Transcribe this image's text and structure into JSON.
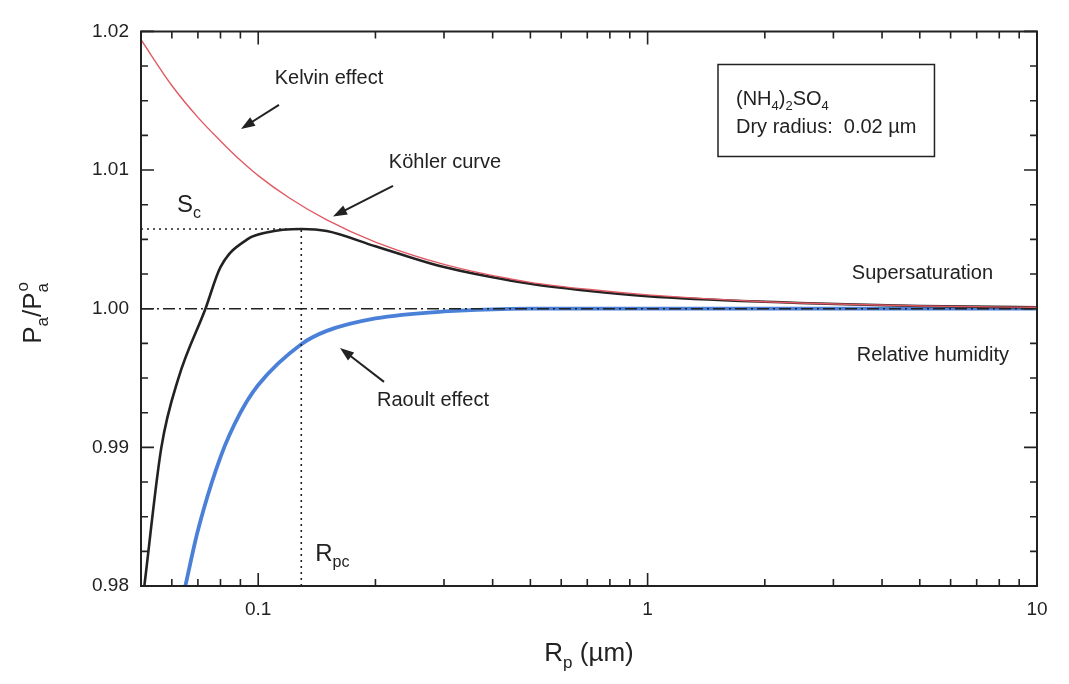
{
  "chart_data": {
    "type": "line",
    "xlabel": "R$_{p}$ (µm)",
    "ylabel": "P$_{a}$/P$_{a}$$^{o}$",
    "log": "x",
    "grid": false,
    "legend": false,
    "marker": "none",
    "line_style": "solid",
    "xlim": [
      0.05,
      10
    ],
    "xticks": [
      {
        "value": 0.05,
        "label": null
      },
      {
        "value": 0.06,
        "label": null
      },
      {
        "value": 0.07,
        "label": null
      },
      {
        "value": 0.08,
        "label": null
      },
      {
        "value": 0.09,
        "label": null
      },
      0.1,
      {
        "value": 0.2,
        "label": null
      },
      {
        "value": 0.3,
        "label": null
      },
      {
        "value": 0.4,
        "label": null
      },
      {
        "value": 0.5,
        "label": null
      },
      {
        "value": 0.6,
        "label": null
      },
      {
        "value": 0.7,
        "label": null
      },
      {
        "value": 0.8,
        "label": null
      },
      {
        "value": 0.9,
        "label": null
      },
      1,
      {
        "value": 2,
        "label": null
      },
      {
        "value": 3,
        "label": null
      },
      {
        "value": 4,
        "label": null
      },
      {
        "value": 5,
        "label": null
      },
      {
        "value": 6,
        "label": null
      },
      {
        "value": 7,
        "label": null
      },
      {
        "value": 8,
        "label": null
      },
      {
        "value": 9,
        "label": null
      },
      10
    ],
    "ylim": [
      0.98,
      1.02
    ],
    "yticks": [
      {
        "value": 0.98,
        "label": "0.98"
      },
      {
        "value": 0.9825,
        "label": null
      },
      {
        "value": 0.985,
        "label": null
      },
      {
        "value": 0.9875,
        "label": null
      },
      {
        "value": 0.99,
        "label": "0.99"
      },
      {
        "value": 0.9925,
        "label": null
      },
      {
        "value": 0.995,
        "label": null
      },
      {
        "value": 0.9975,
        "label": null
      },
      {
        "value": 1.0,
        "label": "1.00"
      },
      {
        "value": 1.0025,
        "label": null
      },
      {
        "value": 1.005,
        "label": null
      },
      {
        "value": 1.0075,
        "label": null
      },
      {
        "value": 1.01,
        "label": "1.01"
      },
      {
        "value": 1.0125,
        "label": null
      },
      {
        "value": 1.015,
        "label": null
      },
      {
        "value": 1.0175,
        "label": null
      },
      {
        "value": 1.02,
        "label": "1.02"
      }
    ],
    "series": [
      {
        "color": "#e05a64",
        "x": [
          0.05,
          0.06,
          0.07,
          0.08,
          0.09,
          0.1,
          0.12,
          0.15,
          0.2,
          0.3,
          0.5,
          0.7,
          1,
          2,
          5,
          10
        ],
        "values": [
          1.0194,
          1.0161,
          1.0138,
          1.0121,
          1.0107,
          1.0096,
          1.008,
          1.0064,
          1.0048,
          1.0032,
          1.0019,
          1.0014,
          1.001,
          1.0005,
          1.0002,
          1.0001
        ]
      },
      {
        "color": "#222222",
        "x": [
          0.051,
          0.0564,
          0.0624,
          0.0732,
          0.08,
          0.0937,
          0.105,
          0.129,
          0.15,
          0.2,
          0.3,
          0.5,
          0.7,
          1,
          2,
          5,
          10
        ],
        "values": [
          0.98,
          0.99,
          0.995,
          1.0,
          1.003,
          1.005,
          1.0055,
          1.00575,
          1.0056,
          1.0045,
          1.003,
          1.0018,
          1.0013,
          1.0009,
          1.0005,
          1.0002,
          1.0001
        ]
      },
      {
        "color": "#4a80d8",
        "x": [
          0.065,
          0.07,
          0.08,
          0.09,
          0.1,
          0.129,
          0.15,
          0.2,
          0.3,
          0.5,
          1,
          10
        ],
        "values": [
          0.98,
          0.984,
          0.9893,
          0.9925,
          0.9945,
          0.99744,
          0.9984,
          0.9993,
          0.9998,
          1.0,
          1.0,
          1.0
        ]
      }
    ],
    "ref_lines": [
      {
        "axis": "y",
        "value": 1.0,
        "label": null,
        "line_style": "dashed",
        "color": "#222222"
      },
      {
        "axis": "y",
        "value": 1.00575,
        "label": "S$_{c}$",
        "line_style": "dotted",
        "color": "#222222"
      },
      {
        "axis": "x",
        "value": 0.129,
        "label": "R$_{pc}$",
        "line_style": "dotted",
        "color": "#222222"
      }
    ],
    "annotations": [
      "Kelvin effect",
      "Köhler curve",
      "Raoult effect",
      "Supersaturation",
      "Relative humidity",
      "(NH$_{4}$)$_{2}$SO$_{4}$",
      "Dry radius:  0.02 µm"
    ]
  }
}
